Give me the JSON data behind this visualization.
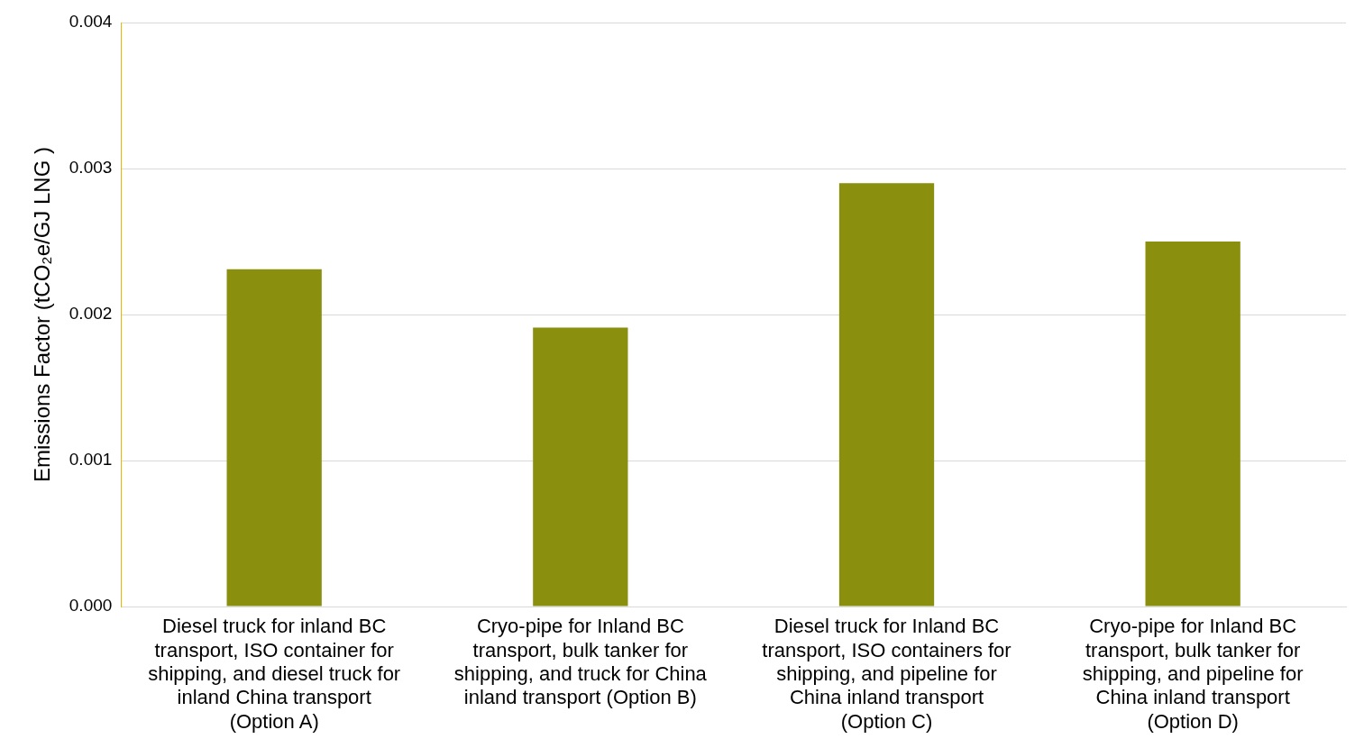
{
  "chart_data": {
    "type": "bar",
    "ylabel": "Emissions Factor (tCO₂e/GJ LNG )",
    "categories": [
      "Diesel truck for inland BC\ntransport, ISO container for\nshipping, and diesel truck for\ninland China transport\n(Option A)",
      "Cryo-pipe for Inland BC\ntransport, bulk tanker for\nshipping, and truck for China\ninland transport (Option B)",
      "Diesel truck for Inland BC\ntransport, ISO containers for\nshipping, and pipeline for\nChina inland transport\n(Option C)",
      "Cryo-pipe for Inland BC\ntransport, bulk tanker for\nshipping, and pipeline for\nChina inland transport\n(Option D)"
    ],
    "values": [
      0.00231,
      0.00191,
      0.0029,
      0.0025
    ],
    "color": "#8a8f0e",
    "ylim": [
      0,
      0.004
    ],
    "yticks": [
      {
        "value": 0,
        "label": "0.000"
      },
      {
        "value": 0.001,
        "label": "0.001"
      },
      {
        "value": 0.002,
        "label": "0.002"
      },
      {
        "value": 0.003,
        "label": "0.003"
      },
      {
        "value": 0.004,
        "label": "0.004"
      }
    ],
    "grid": "y"
  }
}
